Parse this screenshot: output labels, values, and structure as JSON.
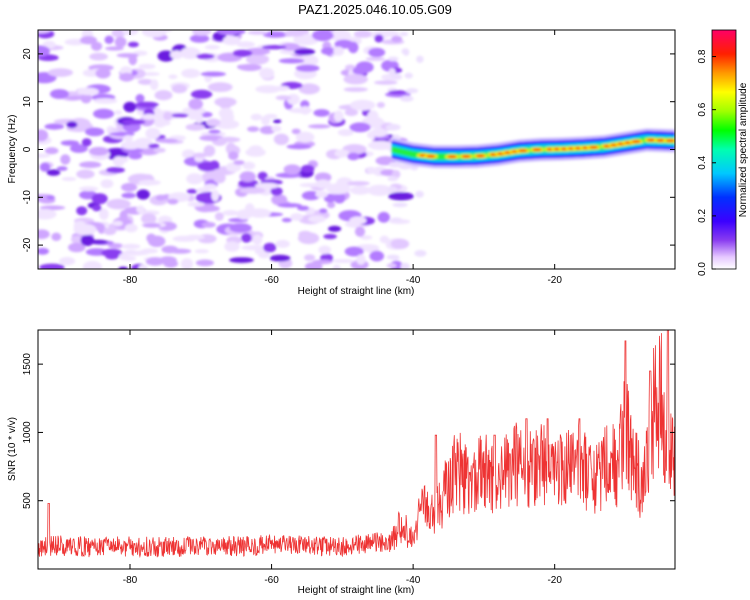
{
  "title": "PAZ1.2025.046.10.05.G09",
  "colors": {
    "snr_line": "#ee3333",
    "noise_purple": "#8a3df0",
    "frame": "#000000"
  },
  "chart_data": [
    {
      "type": "heatmap",
      "panel": "top",
      "xlabel": "Height of straight line (km)",
      "ylabel": "Frequency (Hz)",
      "xlim": [
        -93,
        -3
      ],
      "ylim": [
        -25,
        25
      ],
      "xticks": [
        -80,
        -60,
        -40,
        -20
      ],
      "xtick_labels": [
        "-80",
        "-60",
        "-40",
        "-20"
      ],
      "yticks": [
        -20,
        -10,
        0,
        10,
        20
      ],
      "ytick_labels": [
        "-20",
        "-10",
        "0",
        "10",
        "20"
      ],
      "colorbar": {
        "label": "Normalized spectral amplitude",
        "range": [
          0,
          0.9
        ],
        "ticks": [
          0.0,
          0.2,
          0.4,
          0.6,
          0.8
        ],
        "tick_labels": [
          "0.0",
          "0.2",
          "0.4",
          "0.6",
          "0.8"
        ],
        "colormap": "rainbow"
      },
      "noise_region_x": [
        -93,
        -43
      ],
      "signal_ridge": {
        "x": [
          -43,
          -40,
          -37,
          -34,
          -31,
          -28,
          -25,
          -22,
          -19,
          -16,
          -13,
          -10,
          -7,
          -3
        ],
        "frequency": [
          0.0,
          -1.0,
          -1.5,
          -1.5,
          -1.4,
          -1.0,
          -0.3,
          0.0,
          0.1,
          0.3,
          0.6,
          1.3,
          2.0,
          1.8
        ],
        "amplitude": [
          0.25,
          0.5,
          0.7,
          0.75,
          0.8,
          0.75,
          0.85,
          0.8,
          0.75,
          0.7,
          0.75,
          0.6,
          0.8,
          0.85
        ]
      }
    },
    {
      "type": "line",
      "panel": "bottom",
      "xlabel": "Height of straight line (km)",
      "ylabel": "SNR (10 * v/v)",
      "xlim": [
        -93,
        -3
      ],
      "ylim": [
        0,
        1750
      ],
      "xticks": [
        -80,
        -60,
        -40,
        -20
      ],
      "xtick_labels": [
        "-80",
        "-60",
        "-40",
        "-20"
      ],
      "yticks": [
        500,
        1000,
        1500
      ],
      "ytick_labels": [
        "500",
        "1000",
        "1500"
      ],
      "series": [
        {
          "x": [
            -93,
            -90,
            -85,
            -80,
            -75,
            -70,
            -65,
            -60,
            -55,
            -50,
            -46,
            -43,
            -42,
            -41,
            -40,
            -39,
            -38,
            -37,
            -36,
            -35,
            -34,
            -32,
            -30,
            -28,
            -26,
            -24,
            -22,
            -20,
            -18,
            -16,
            -14,
            -12,
            -11,
            -10,
            -9,
            -8,
            -7,
            -6,
            -5,
            -4,
            -3
          ],
          "values": [
            160,
            170,
            160,
            165,
            160,
            170,
            165,
            175,
            170,
            160,
            190,
            200,
            320,
            280,
            200,
            420,
            450,
            380,
            500,
            620,
            750,
            640,
            720,
            620,
            780,
            700,
            820,
            680,
            720,
            760,
            640,
            820,
            760,
            1050,
            820,
            640,
            740,
            1150,
            1300,
            760,
            920
          ],
          "peaks": [
            {
              "x": -91.5,
              "y": 480
            },
            {
              "x": -36.8,
              "y": 980
            },
            {
              "x": -28.5,
              "y": 980
            },
            {
              "x": -24.0,
              "y": 1100
            },
            {
              "x": -21.0,
              "y": 1100
            },
            {
              "x": -16.5,
              "y": 1100
            },
            {
              "x": -10.0,
              "y": 1670
            },
            {
              "x": -6.5,
              "y": 1450
            },
            {
              "x": -4.0,
              "y": 1750
            },
            {
              "x": -3.0,
              "y": 1040
            }
          ]
        }
      ]
    }
  ]
}
